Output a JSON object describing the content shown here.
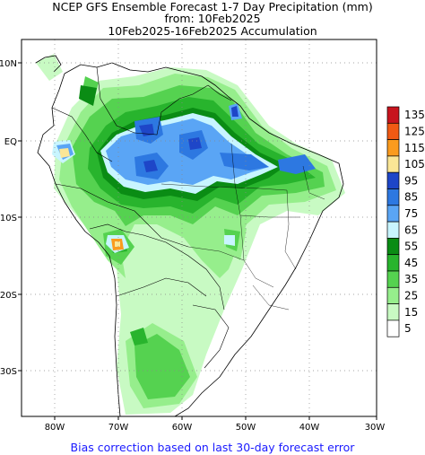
{
  "title": {
    "line1": "NCEP GFS Ensemble Forecast 1-7 Day Precipitation (mm)",
    "line2": "from: 10Feb2025",
    "line3": "10Feb2025-16Feb2025 Accumulation"
  },
  "footer": "Bias correction based on last 30-day forecast error",
  "lat_labels": [
    "10N",
    "EQ",
    "10S",
    "20S",
    "30S"
  ],
  "lon_labels": [
    "80W",
    "70W",
    "60W",
    "50W",
    "40W",
    "30W"
  ],
  "legend": {
    "levels": [
      {
        "label": "135",
        "color": "#c8141e"
      },
      {
        "label": "125",
        "color": "#f05a14"
      },
      {
        "label": "115",
        "color": "#fa9b1e"
      },
      {
        "label": "105",
        "color": "#fae696"
      },
      {
        "label": "95",
        "color": "#1e46c8"
      },
      {
        "label": "85",
        "color": "#2d78e1"
      },
      {
        "label": "75",
        "color": "#5aa5f5"
      },
      {
        "label": "65",
        "color": "#c8f5ff"
      },
      {
        "label": "55",
        "color": "#0a8c14"
      },
      {
        "label": "45",
        "color": "#28b42d"
      },
      {
        "label": "35",
        "color": "#55d250"
      },
      {
        "label": "25",
        "color": "#96ee8c"
      },
      {
        "label": "15",
        "color": "#c8fac3"
      },
      {
        "label": "5",
        "color": "#ffffff"
      }
    ]
  }
}
